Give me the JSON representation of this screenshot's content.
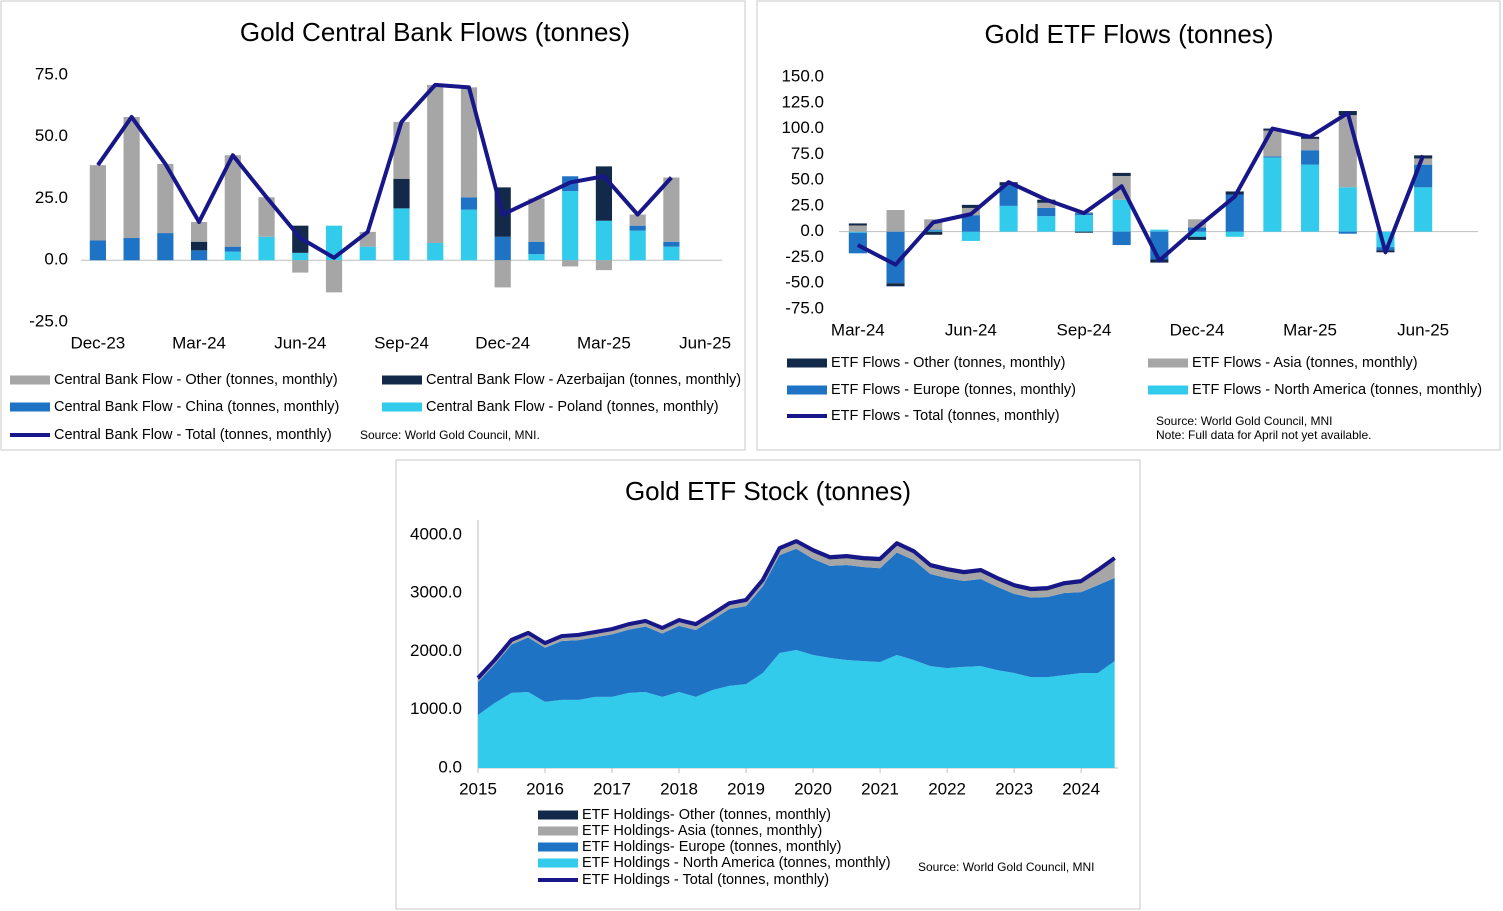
{
  "chart_data": [
    {
      "type": "bar",
      "title": "Gold Central Bank Flows (tonnes)",
      "categories": [
        "Dec-23",
        null,
        null,
        "Mar-24",
        null,
        null,
        "Jun-24",
        null,
        null,
        "Sep-24",
        null,
        null,
        "Dec-24",
        null,
        null,
        "Mar-25",
        null,
        null,
        "Jun-25"
      ],
      "series": [
        {
          "name": "Central Bank Flow - Other (tonnes, monthly)",
          "type": "bar",
          "color": "#a6a6a6",
          "values": [
            30.5,
            49,
            28,
            8,
            37,
            16,
            -5,
            -13,
            6,
            23,
            64,
            44.5,
            -11,
            17.5,
            -2.5,
            -4,
            4.5,
            26,
            null
          ]
        },
        {
          "name": "Central Bank Flow - Azerbaijan (tonnes, monthly)",
          "type": "bar",
          "color": "#13294a",
          "values": [
            0,
            0,
            0,
            3.5,
            0,
            0,
            11,
            0,
            0,
            12,
            0,
            0,
            20,
            0,
            0,
            22,
            0,
            0,
            null
          ]
        },
        {
          "name": "Central Bank Flow - China (tonnes, monthly)",
          "type": "bar",
          "color": "#1f73c4",
          "values": [
            8,
            9,
            11,
            4,
            2,
            0,
            0,
            0,
            0,
            0,
            0,
            5,
            9.5,
            5,
            6,
            0,
            2,
            2,
            null
          ]
        },
        {
          "name": "Central Bank Flow - Poland (tonnes, monthly)",
          "type": "bar",
          "color": "#33cbec",
          "values": [
            0,
            0,
            0,
            0,
            3.5,
            9.5,
            3,
            14,
            5.5,
            21,
            7,
            20.5,
            0,
            2.5,
            28,
            16,
            12,
            5.5,
            null
          ]
        },
        {
          "name": "Central Bank Flow - Total (tonnes, monthly)",
          "type": "line",
          "color": "#17178a",
          "values": [
            38.5,
            58,
            39,
            15.5,
            42.5,
            25.5,
            9,
            1,
            11.5,
            56,
            71,
            70,
            18.5,
            25,
            31.5,
            34,
            18.5,
            33.5,
            null
          ]
        }
      ],
      "ylim": [
        -25,
        75
      ],
      "yticks": [
        {
          "value": -25,
          "label": "-25.0"
        },
        {
          "value": 0,
          "label": "0.0"
        },
        {
          "value": 25,
          "label": "25.0"
        },
        {
          "value": 50,
          "label": "50.0"
        },
        {
          "value": 75,
          "label": "75.0"
        }
      ],
      "source": "Source: World Gold Council, MNI."
    },
    {
      "type": "bar",
      "title": "Gold ETF Flows (tonnes)",
      "categories": [
        "Mar-24",
        null,
        null,
        "Jun-24",
        null,
        null,
        "Sep-24",
        null,
        null,
        "Dec-24",
        null,
        null,
        "Mar-25",
        null,
        null,
        "Jun-25"
      ],
      "series": [
        {
          "name": "ETF Flows - Other (tonnes, monthly)",
          "type": "bar",
          "color": "#13294a",
          "values": [
            2,
            -3,
            -3,
            3,
            3,
            3,
            -1,
            3,
            -3,
            -3,
            3,
            2,
            2,
            4,
            -2,
            3
          ]
        },
        {
          "name": "ETF Flows - Asia (tonnes, monthly)",
          "type": "bar",
          "color": "#a6a6a6",
          "values": [
            6,
            21,
            10,
            7,
            0,
            5,
            1,
            23,
            0,
            8,
            0,
            25,
            11,
            70,
            0,
            6
          ]
        },
        {
          "name": "ETF Flows - Europe (tonnes, monthly)",
          "type": "bar",
          "color": "#1f73c4",
          "values": [
            -20,
            -50,
            1,
            16,
            20,
            8,
            2,
            -13,
            -27,
            4,
            36,
            1,
            14,
            -2,
            -3,
            22
          ]
        },
        {
          "name": "ETF Flows - North America (tonnes, monthly)",
          "type": "bar",
          "color": "#33cbec",
          "values": [
            -1,
            0,
            1,
            -9,
            25,
            15,
            16,
            31,
            2,
            -5,
            -5,
            72,
            65,
            43,
            -15,
            43
          ]
        },
        {
          "name": "ETF Flows - Total (tonnes, monthly)",
          "type": "line",
          "color": "#17178a",
          "values": [
            -13,
            -32,
            9,
            17,
            48,
            31,
            18,
            44,
            -28,
            4,
            34,
            100,
            92,
            115,
            -20,
            74
          ]
        }
      ],
      "ylim": [
        -75,
        150
      ],
      "yticks": [
        {
          "value": -75,
          "label": "-75.0"
        },
        {
          "value": -50,
          "label": "-50.0"
        },
        {
          "value": -25,
          "label": "-25.0"
        },
        {
          "value": 0,
          "label": "0.0"
        },
        {
          "value": 25,
          "label": "25.0"
        },
        {
          "value": 50,
          "label": "50.0"
        },
        {
          "value": 75,
          "label": "75.0"
        },
        {
          "value": 100,
          "label": "100.0"
        },
        {
          "value": 125,
          "label": "125.0"
        },
        {
          "value": 150,
          "label": "150.0"
        }
      ],
      "source": "Source: World Gold Council, MNI",
      "note": "Note: Full data for April not yet available."
    },
    {
      "type": "area",
      "title": "Gold ETF Stock (tonnes)",
      "x": [
        2015,
        2015.25,
        2015.5,
        2015.75,
        2016,
        2016.25,
        2016.5,
        2016.75,
        2017,
        2017.25,
        2017.5,
        2017.75,
        2018,
        2018.25,
        2018.5,
        2018.75,
        2019,
        2019.25,
        2019.5,
        2019.75,
        2020,
        2020.25,
        2020.5,
        2020.75,
        2021,
        2021.25,
        2021.5,
        2021.75,
        2022,
        2022.25,
        2022.5,
        2022.75,
        2023,
        2023.25,
        2023.5,
        2023.75,
        2024,
        2024.25,
        2024.5
      ],
      "series": [
        {
          "name": "ETF Holdings- Other (tonnes, monthly)",
          "type": "area",
          "color": "#13294a",
          "values": [
            30,
            30,
            30,
            30,
            30,
            30,
            30,
            30,
            30,
            30,
            30,
            30,
            30,
            30,
            30,
            30,
            30,
            30,
            30,
            30,
            40,
            40,
            40,
            40,
            40,
            40,
            40,
            40,
            40,
            40,
            40,
            40,
            40,
            40,
            40,
            40,
            40,
            40,
            40
          ]
        },
        {
          "name": "ETF Holdings- Asia (tonnes, monthly)",
          "type": "area",
          "color": "#a6a6a6",
          "values": [
            40,
            45,
            50,
            50,
            50,
            55,
            60,
            60,
            60,
            65,
            65,
            65,
            70,
            70,
            70,
            70,
            75,
            80,
            90,
            100,
            110,
            110,
            115,
            115,
            120,
            120,
            115,
            115,
            115,
            115,
            115,
            110,
            110,
            110,
            115,
            130,
            150,
            220,
            300
          ]
        },
        {
          "name": "ETF Holdings- Europe (tonnes, monthly)",
          "type": "area",
          "color": "#1f73c4",
          "values": [
            565,
            665,
            830,
            935,
            930,
            1010,
            1025,
            1025,
            1075,
            1085,
            1125,
            1090,
            1135,
            1150,
            1205,
            1320,
            1340,
            1490,
            1680,
            1740,
            1650,
            1580,
            1630,
            1615,
            1610,
            1760,
            1715,
            1580,
            1545,
            1475,
            1495,
            1430,
            1360,
            1365,
            1375,
            1410,
            1390,
            1510,
            1430
          ]
        },
        {
          "name": "ETF Holdings - North America (tonnes, monthly)",
          "type": "area",
          "color": "#33cbec",
          "values": [
            910,
            1115,
            1290,
            1305,
            1135,
            1170,
            1170,
            1220,
            1220,
            1290,
            1305,
            1220,
            1305,
            1220,
            1340,
            1410,
            1440,
            1630,
            1975,
            2025,
            1940,
            1890,
            1855,
            1835,
            1820,
            1940,
            1855,
            1750,
            1715,
            1735,
            1750,
            1680,
            1630,
            1560,
            1560,
            1595,
            1630,
            1630,
            1835
          ]
        },
        {
          "name": "ETF Holdings - Total (tonnes, monthly)",
          "type": "line",
          "color": "#17178a",
          "values": [
            1545,
            1855,
            2200,
            2320,
            2145,
            2265,
            2285,
            2335,
            2385,
            2470,
            2525,
            2405,
            2540,
            2470,
            2645,
            2830,
            2885,
            3230,
            3775,
            3895,
            3740,
            3620,
            3640,
            3605,
            3590,
            3860,
            3725,
            3485,
            3415,
            3365,
            3400,
            3260,
            3140,
            3075,
            3090,
            3175,
            3210,
            3400,
            3605
          ]
        }
      ],
      "xlim": [
        2015,
        2024.55
      ],
      "xticks": [
        2015,
        2016,
        2017,
        2018,
        2019,
        2020,
        2021,
        2022,
        2023,
        2024
      ],
      "ylim": [
        0,
        4000
      ],
      "yticks": [
        {
          "value": 0,
          "label": "0.0"
        },
        {
          "value": 1000,
          "label": "1000.0"
        },
        {
          "value": 2000,
          "label": "2000.0"
        },
        {
          "value": 3000,
          "label": "3000.0"
        },
        {
          "value": 4000,
          "label": "4000.0"
        }
      ],
      "source": "Source: World Gold Council, MNI"
    }
  ]
}
